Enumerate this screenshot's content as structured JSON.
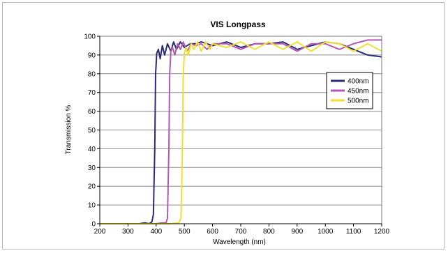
{
  "chart_data": {
    "type": "line",
    "title": "VIS Longpass",
    "xlabel": "Wavelength (nm)",
    "ylabel": "Transmission %",
    "xlim": [
      200,
      1200
    ],
    "ylim": [
      0,
      100
    ],
    "xticks": [
      200,
      300,
      400,
      500,
      600,
      700,
      800,
      900,
      1000,
      1100,
      1200
    ],
    "yticks": [
      0,
      10,
      20,
      30,
      40,
      50,
      60,
      70,
      80,
      90,
      100
    ],
    "grid": "horizontal",
    "legend_position": "right",
    "series": [
      {
        "name": "400nm",
        "color": "#2a2a78",
        "points": [
          [
            200,
            0
          ],
          [
            300,
            0
          ],
          [
            340,
            0
          ],
          [
            360,
            0.5
          ],
          [
            375,
            0
          ],
          [
            385,
            1
          ],
          [
            390,
            5
          ],
          [
            395,
            40
          ],
          [
            398,
            80
          ],
          [
            402,
            91
          ],
          [
            408,
            93
          ],
          [
            414,
            88
          ],
          [
            422,
            95
          ],
          [
            430,
            90
          ],
          [
            440,
            96
          ],
          [
            452,
            92
          ],
          [
            462,
            97
          ],
          [
            472,
            93
          ],
          [
            486,
            97
          ],
          [
            500,
            94
          ],
          [
            520,
            96
          ],
          [
            540,
            96
          ],
          [
            560,
            97
          ],
          [
            600,
            95
          ],
          [
            650,
            97
          ],
          [
            700,
            94
          ],
          [
            750,
            96
          ],
          [
            800,
            96
          ],
          [
            850,
            97
          ],
          [
            900,
            93
          ],
          [
            950,
            95
          ],
          [
            1000,
            97
          ],
          [
            1050,
            96
          ],
          [
            1100,
            93
          ],
          [
            1150,
            90
          ],
          [
            1200,
            89
          ]
        ]
      },
      {
        "name": "450nm",
        "color": "#b05ab4",
        "points": [
          [
            200,
            0
          ],
          [
            300,
            0
          ],
          [
            400,
            0
          ],
          [
            420,
            0.5
          ],
          [
            435,
            0.5
          ],
          [
            440,
            3
          ],
          [
            445,
            40
          ],
          [
            448,
            80
          ],
          [
            452,
            92
          ],
          [
            458,
            94
          ],
          [
            466,
            90
          ],
          [
            476,
            96
          ],
          [
            486,
            93
          ],
          [
            496,
            97
          ],
          [
            510,
            92
          ],
          [
            525,
            96
          ],
          [
            540,
            95
          ],
          [
            560,
            96
          ],
          [
            580,
            93
          ],
          [
            600,
            96
          ],
          [
            650,
            96
          ],
          [
            700,
            93
          ],
          [
            750,
            96
          ],
          [
            800,
            96
          ],
          [
            850,
            96
          ],
          [
            900,
            92
          ],
          [
            950,
            96
          ],
          [
            1000,
            96
          ],
          [
            1050,
            93
          ],
          [
            1100,
            96
          ],
          [
            1150,
            98
          ],
          [
            1200,
            98
          ]
        ]
      },
      {
        "name": "500nm",
        "color": "#f0e030",
        "points": [
          [
            200,
            0
          ],
          [
            300,
            0
          ],
          [
            400,
            0
          ],
          [
            450,
            0
          ],
          [
            480,
            0.5
          ],
          [
            488,
            3
          ],
          [
            493,
            40
          ],
          [
            496,
            80
          ],
          [
            500,
            91
          ],
          [
            506,
            94
          ],
          [
            514,
            90
          ],
          [
            524,
            96
          ],
          [
            534,
            93
          ],
          [
            546,
            97
          ],
          [
            560,
            92
          ],
          [
            575,
            97
          ],
          [
            590,
            93
          ],
          [
            600,
            96
          ],
          [
            650,
            94
          ],
          [
            700,
            97
          ],
          [
            750,
            93
          ],
          [
            800,
            97
          ],
          [
            850,
            93
          ],
          [
            900,
            97
          ],
          [
            950,
            92
          ],
          [
            1000,
            97
          ],
          [
            1050,
            96
          ],
          [
            1100,
            92
          ],
          [
            1150,
            96
          ],
          [
            1200,
            92
          ]
        ]
      }
    ]
  }
}
